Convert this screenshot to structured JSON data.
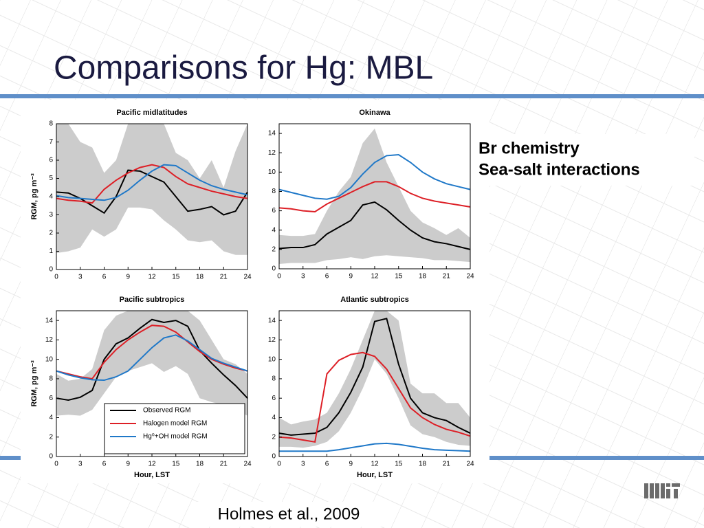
{
  "title": "Comparisons for Hg: MBL",
  "side_notes": [
    "Br chemistry",
    "Sea-salt interactions"
  ],
  "citation": "Holmes et al., 2009",
  "chart_data": [
    {
      "type": "line",
      "title": "Pacific midlatitudes",
      "ylabel": "RGM, pg m⁻³",
      "x": [
        0,
        1.5,
        3,
        4.5,
        6,
        7.5,
        9,
        10.5,
        12,
        13.5,
        15,
        16.5,
        18,
        19.5,
        21,
        22.5,
        24
      ],
      "xlim": [
        0,
        24
      ],
      "xticks": [
        0,
        3,
        6,
        9,
        12,
        15,
        18,
        21,
        24
      ],
      "ylim": [
        0,
        8
      ],
      "yticks": [
        0,
        1,
        2,
        3,
        4,
        5,
        6,
        7,
        8
      ],
      "band": {
        "color": "#cccccc",
        "upper": [
          8,
          8,
          7,
          6.7,
          5.3,
          6.0,
          8,
          8,
          8,
          8,
          6.4,
          6.0,
          5.0,
          6.0,
          4.5,
          6.5,
          8
        ],
        "lower": [
          0.9,
          1.0,
          1.2,
          2.2,
          1.8,
          2.2,
          3.4,
          3.4,
          3.3,
          2.7,
          2.2,
          1.6,
          1.5,
          1.6,
          1.0,
          0.8,
          0.8
        ]
      },
      "series": [
        {
          "color": "#000000",
          "values": [
            4.25,
            4.2,
            3.9,
            3.5,
            3.1,
            4.0,
            5.45,
            5.4,
            5.1,
            4.8,
            4.0,
            3.2,
            3.3,
            3.45,
            3.0,
            3.2,
            4.25
          ]
        },
        {
          "color": "#dd1f26",
          "values": [
            3.9,
            3.8,
            3.75,
            3.65,
            4.4,
            4.9,
            5.3,
            5.6,
            5.75,
            5.6,
            5.1,
            4.7,
            4.5,
            4.3,
            4.15,
            4.0,
            3.9
          ]
        },
        {
          "color": "#1f78c8",
          "values": [
            4.05,
            3.95,
            3.9,
            3.85,
            3.8,
            3.95,
            4.35,
            4.9,
            5.4,
            5.75,
            5.7,
            5.3,
            4.9,
            4.6,
            4.4,
            4.25,
            4.1
          ]
        }
      ]
    },
    {
      "type": "line",
      "title": "Okinawa",
      "x": [
        0,
        1.5,
        3,
        4.5,
        6,
        7.5,
        9,
        10.5,
        12,
        13.5,
        15,
        16.5,
        18,
        19.5,
        21,
        22.5,
        24
      ],
      "xlim": [
        0,
        24
      ],
      "xticks": [
        0,
        3,
        6,
        9,
        12,
        15,
        18,
        21,
        24
      ],
      "ylim": [
        0,
        15
      ],
      "yticks": [
        0,
        2,
        4,
        6,
        8,
        10,
        12,
        14
      ],
      "band": {
        "color": "#cccccc",
        "upper": [
          3.5,
          3.4,
          3.4,
          3.6,
          6.0,
          8,
          9.5,
          13,
          14.5,
          11,
          8.5,
          6.0,
          4.8,
          4.2,
          3.5,
          4.2,
          3.2
        ],
        "lower": [
          0.5,
          0.6,
          0.6,
          0.6,
          0.9,
          1.0,
          1.2,
          1.0,
          1.3,
          1.4,
          1.3,
          1.2,
          1.1,
          0.9,
          0.9,
          0.8,
          0.7
        ]
      },
      "series": [
        {
          "color": "#000000",
          "values": [
            2.1,
            2.2,
            2.2,
            2.5,
            3.6,
            4.3,
            5.0,
            6.6,
            6.9,
            6.1,
            5.0,
            4.0,
            3.2,
            2.8,
            2.6,
            2.3,
            2.0
          ]
        },
        {
          "color": "#dd1f26",
          "values": [
            6.3,
            6.2,
            6.0,
            5.9,
            6.7,
            7.3,
            7.9,
            8.5,
            9.0,
            9.0,
            8.5,
            7.8,
            7.3,
            7.0,
            6.8,
            6.6,
            6.4
          ]
        },
        {
          "color": "#1f78c8",
          "values": [
            8.2,
            7.9,
            7.6,
            7.3,
            7.2,
            7.5,
            8.4,
            9.8,
            11.0,
            11.7,
            11.8,
            11.0,
            10.0,
            9.3,
            8.8,
            8.5,
            8.2
          ]
        }
      ]
    },
    {
      "type": "line",
      "title": "Pacific subtropics",
      "ylabel": "RGM, pg m⁻³",
      "xlabel": "Hour, LST",
      "x": [
        0,
        1.5,
        3,
        4.5,
        6,
        7.5,
        9,
        10.5,
        12,
        13.5,
        15,
        16.5,
        18,
        19.5,
        21,
        22.5,
        24
      ],
      "xlim": [
        0,
        24
      ],
      "xticks": [
        0,
        3,
        6,
        9,
        12,
        15,
        18,
        21,
        24
      ],
      "ylim": [
        0,
        15
      ],
      "yticks": [
        0,
        2,
        4,
        6,
        8,
        10,
        12,
        14
      ],
      "legend": "lower right",
      "band": {
        "color": "#cccccc",
        "upper": [
          8.5,
          7.8,
          8.0,
          9.0,
          13,
          14.5,
          15,
          15,
          15,
          15,
          15,
          15,
          14,
          12,
          10,
          9.5,
          8.5
        ],
        "lower": [
          4.2,
          4.3,
          4.2,
          4.8,
          6.5,
          8.2,
          8.8,
          9.2,
          9.6,
          8.7,
          9.3,
          8.5,
          6.0,
          5.6,
          5.3,
          4.8,
          4.2
        ]
      },
      "series": [
        {
          "name": "Observed RGM",
          "color": "#000000",
          "values": [
            6.0,
            5.8,
            6.1,
            6.8,
            10.0,
            11.6,
            12.2,
            13.2,
            14.1,
            13.8,
            14.0,
            13.4,
            10.9,
            9.6,
            8.4,
            7.3,
            6.0
          ]
        },
        {
          "name": "Halogen model RGM",
          "color": "#dd1f26",
          "values": [
            8.8,
            8.5,
            8.2,
            8.0,
            9.7,
            11.0,
            12.0,
            12.8,
            13.5,
            13.4,
            12.8,
            11.8,
            10.8,
            10.0,
            9.5,
            9.1,
            8.8
          ]
        },
        {
          "name": "Hg⁰+OH model RGM",
          "color": "#1f78c8",
          "values": [
            8.8,
            8.4,
            8.1,
            7.9,
            7.85,
            8.2,
            8.8,
            10.0,
            11.2,
            12.2,
            12.5,
            11.9,
            11.0,
            10.1,
            9.6,
            9.2,
            8.8
          ]
        }
      ]
    },
    {
      "type": "line",
      "title": "Atlantic subtropics",
      "xlabel": "Hour, LST",
      "x": [
        0,
        1.5,
        3,
        4.5,
        6,
        7.5,
        9,
        10.5,
        12,
        13.5,
        15,
        16.5,
        18,
        19.5,
        21,
        22.5,
        24
      ],
      "xlim": [
        0,
        24
      ],
      "xticks": [
        0,
        3,
        6,
        9,
        12,
        15,
        18,
        21,
        24
      ],
      "ylim": [
        0,
        15
      ],
      "yticks": [
        0,
        2,
        4,
        6,
        8,
        10,
        12,
        14
      ],
      "band": {
        "color": "#cccccc",
        "upper": [
          4.0,
          3.3,
          3.6,
          3.8,
          4.5,
          6.5,
          9,
          12,
          15,
          15,
          14,
          7.5,
          6.5,
          6.5,
          5.5,
          5.5,
          4.0
        ],
        "lower": [
          1.0,
          1.0,
          0.9,
          1.1,
          1.5,
          2.6,
          4.5,
          7.0,
          10.0,
          8.5,
          6.0,
          3.2,
          2.3,
          2.0,
          1.5,
          1.2,
          1.1
        ]
      },
      "series": [
        {
          "color": "#000000",
          "values": [
            2.4,
            2.2,
            2.3,
            2.4,
            3.0,
            4.5,
            6.6,
            9.2,
            13.9,
            14.2,
            9.5,
            6.0,
            4.5,
            4.0,
            3.7,
            3.0,
            2.4
          ]
        },
        {
          "color": "#dd1f26",
          "values": [
            2.0,
            1.9,
            1.7,
            1.5,
            8.5,
            9.9,
            10.5,
            10.7,
            10.3,
            9.0,
            7.0,
            5.0,
            4.0,
            3.3,
            2.8,
            2.5,
            2.1
          ]
        },
        {
          "color": "#1f78c8",
          "values": [
            0.55,
            0.55,
            0.55,
            0.55,
            0.55,
            0.7,
            0.9,
            1.1,
            1.3,
            1.35,
            1.25,
            1.05,
            0.85,
            0.7,
            0.65,
            0.6,
            0.55
          ]
        }
      ]
    }
  ]
}
